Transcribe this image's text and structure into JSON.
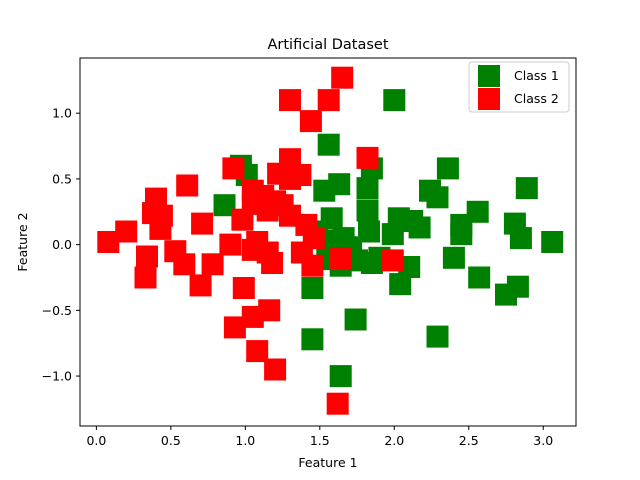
{
  "chart_data": {
    "type": "scatter",
    "title": "Artificial Dataset",
    "xlabel": "Feature 1",
    "ylabel": "Feature 2",
    "xlim": [
      -0.11,
      3.22
    ],
    "ylim": [
      -1.38,
      1.42
    ],
    "xticks": [
      0.0,
      0.5,
      1.0,
      1.5,
      2.0,
      2.5,
      3.0
    ],
    "xtick_labels": [
      "0.0",
      "0.5",
      "1.0",
      "1.5",
      "2.0",
      "2.5",
      "3.0"
    ],
    "yticks": [
      -1.0,
      -0.5,
      0.0,
      0.5,
      1.0
    ],
    "ytick_labels": [
      "−1.0",
      "−0.5",
      "0.0",
      "0.5",
      "1.0"
    ],
    "grid": false,
    "legend_position": "top-right",
    "series": [
      {
        "name": "Class 1",
        "color": "#008000",
        "marker": "square",
        "points": [
          [
            0.97,
            0.6
          ],
          [
            1.01,
            0.53
          ],
          [
            2.0,
            1.1
          ],
          [
            1.56,
            0.76
          ],
          [
            2.36,
            0.58
          ],
          [
            1.82,
            0.43
          ],
          [
            1.85,
            0.58
          ],
          [
            1.63,
            0.46
          ],
          [
            1.53,
            0.41
          ],
          [
            2.24,
            0.41
          ],
          [
            2.29,
            0.36
          ],
          [
            2.89,
            0.43
          ],
          [
            0.86,
            0.3
          ],
          [
            1.82,
            0.26
          ],
          [
            2.03,
            0.2
          ],
          [
            1.83,
            0.1
          ],
          [
            1.58,
            0.2
          ],
          [
            1.48,
            0.1
          ],
          [
            1.56,
            0.03
          ],
          [
            1.66,
            0.05
          ],
          [
            1.71,
            -0.02
          ],
          [
            1.99,
            0.08
          ],
          [
            2.12,
            0.18
          ],
          [
            2.17,
            0.13
          ],
          [
            2.45,
            0.15
          ],
          [
            2.45,
            0.08
          ],
          [
            2.56,
            0.25
          ],
          [
            2.81,
            0.16
          ],
          [
            2.85,
            0.05
          ],
          [
            3.06,
            0.02
          ],
          [
            1.55,
            -0.11
          ],
          [
            1.64,
            -0.16
          ],
          [
            1.75,
            -0.12
          ],
          [
            1.85,
            -0.14
          ],
          [
            1.9,
            -0.1
          ],
          [
            2.1,
            -0.17
          ],
          [
            2.4,
            -0.1
          ],
          [
            2.57,
            -0.25
          ],
          [
            2.75,
            -0.38
          ],
          [
            2.83,
            -0.32
          ],
          [
            2.04,
            -0.3
          ],
          [
            1.45,
            -0.33
          ],
          [
            1.74,
            -0.57
          ],
          [
            1.45,
            -0.72
          ],
          [
            2.29,
            -0.7
          ],
          [
            1.64,
            -1.0
          ]
        ]
      },
      {
        "name": "Class 2",
        "color": "#ff0000",
        "marker": "square",
        "points": [
          [
            1.65,
            1.27
          ],
          [
            1.3,
            1.1
          ],
          [
            1.56,
            1.1
          ],
          [
            1.44,
            0.94
          ],
          [
            1.82,
            0.66
          ],
          [
            1.3,
            0.65
          ],
          [
            0.92,
            0.58
          ],
          [
            1.22,
            0.54
          ],
          [
            1.3,
            0.5
          ],
          [
            1.37,
            0.53
          ],
          [
            0.61,
            0.45
          ],
          [
            1.05,
            0.41
          ],
          [
            1.12,
            0.37
          ],
          [
            1.2,
            0.33
          ],
          [
            0.4,
            0.35
          ],
          [
            1.05,
            0.31
          ],
          [
            1.15,
            0.26
          ],
          [
            1.25,
            0.3
          ],
          [
            1.3,
            0.22
          ],
          [
            0.38,
            0.24
          ],
          [
            0.44,
            0.22
          ],
          [
            0.98,
            0.19
          ],
          [
            0.71,
            0.16
          ],
          [
            1.41,
            0.15
          ],
          [
            0.43,
            0.12
          ],
          [
            0.2,
            0.1
          ],
          [
            0.08,
            0.02
          ],
          [
            0.9,
            0.0
          ],
          [
            1.08,
            0.02
          ],
          [
            1.46,
            0.05
          ],
          [
            0.53,
            -0.05
          ],
          [
            0.34,
            -0.09
          ],
          [
            1.05,
            -0.04
          ],
          [
            1.15,
            -0.06
          ],
          [
            1.38,
            -0.06
          ],
          [
            0.59,
            -0.15
          ],
          [
            0.78,
            -0.15
          ],
          [
            1.18,
            -0.14
          ],
          [
            1.45,
            -0.16
          ],
          [
            1.64,
            -0.11
          ],
          [
            1.99,
            -0.12
          ],
          [
            0.33,
            -0.25
          ],
          [
            0.7,
            -0.31
          ],
          [
            0.99,
            -0.33
          ],
          [
            1.16,
            -0.5
          ],
          [
            1.05,
            -0.55
          ],
          [
            0.93,
            -0.63
          ],
          [
            1.08,
            -0.81
          ],
          [
            1.2,
            -0.95
          ],
          [
            1.62,
            -1.21
          ]
        ]
      }
    ]
  }
}
